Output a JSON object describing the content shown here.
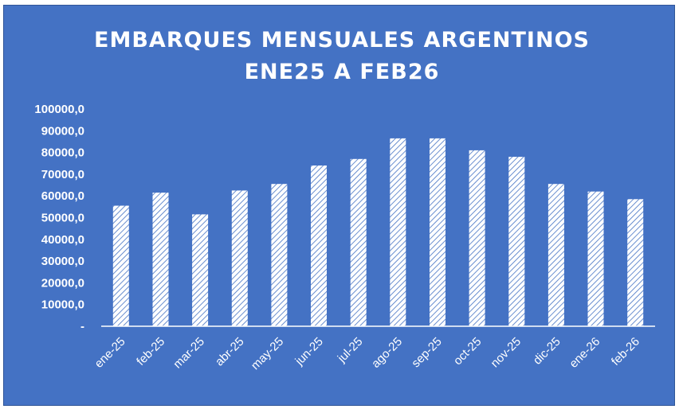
{
  "background_color": "#4472c4",
  "bar_fill_color": "#ffffff",
  "bar_hatch_color": "#4472c4",
  "text_color": "#ffffff",
  "chart_data": {
    "type": "bar",
    "title_lines": [
      "EMBARQUES MENSUALES ARGENTINOS",
      "ENE25 A FEB26"
    ],
    "xlabel": "",
    "ylabel": "",
    "ylim": [
      0,
      100000
    ],
    "y_ticks": [
      {
        "value": 0,
        "label": "-"
      },
      {
        "value": 10000,
        "label": "10000,0"
      },
      {
        "value": 20000,
        "label": "20000,0"
      },
      {
        "value": 30000,
        "label": "30000,0"
      },
      {
        "value": 40000,
        "label": "40000,0"
      },
      {
        "value": 50000,
        "label": "50000,0"
      },
      {
        "value": 60000,
        "label": "60000,0"
      },
      {
        "value": 70000,
        "label": "70000,0"
      },
      {
        "value": 80000,
        "label": "80000,0"
      },
      {
        "value": 90000,
        "label": "90000,0"
      },
      {
        "value": 100000,
        "label": "100000,0"
      }
    ],
    "grid": false,
    "legend": "none",
    "bar_pattern": "diagonal-hatch",
    "categories": [
      "ene-25",
      "feb-25",
      "mar-25",
      "abr-25",
      "may-25",
      "jun-25",
      "jul-25",
      "ago-25",
      "sep-25",
      "oct-25",
      "nov-25",
      "dic-25",
      "ene-26",
      "feb-26"
    ],
    "values": [
      55500,
      61500,
      51500,
      62500,
      65500,
      74000,
      77000,
      86500,
      86500,
      81000,
      78000,
      65500,
      62000,
      58500
    ]
  }
}
